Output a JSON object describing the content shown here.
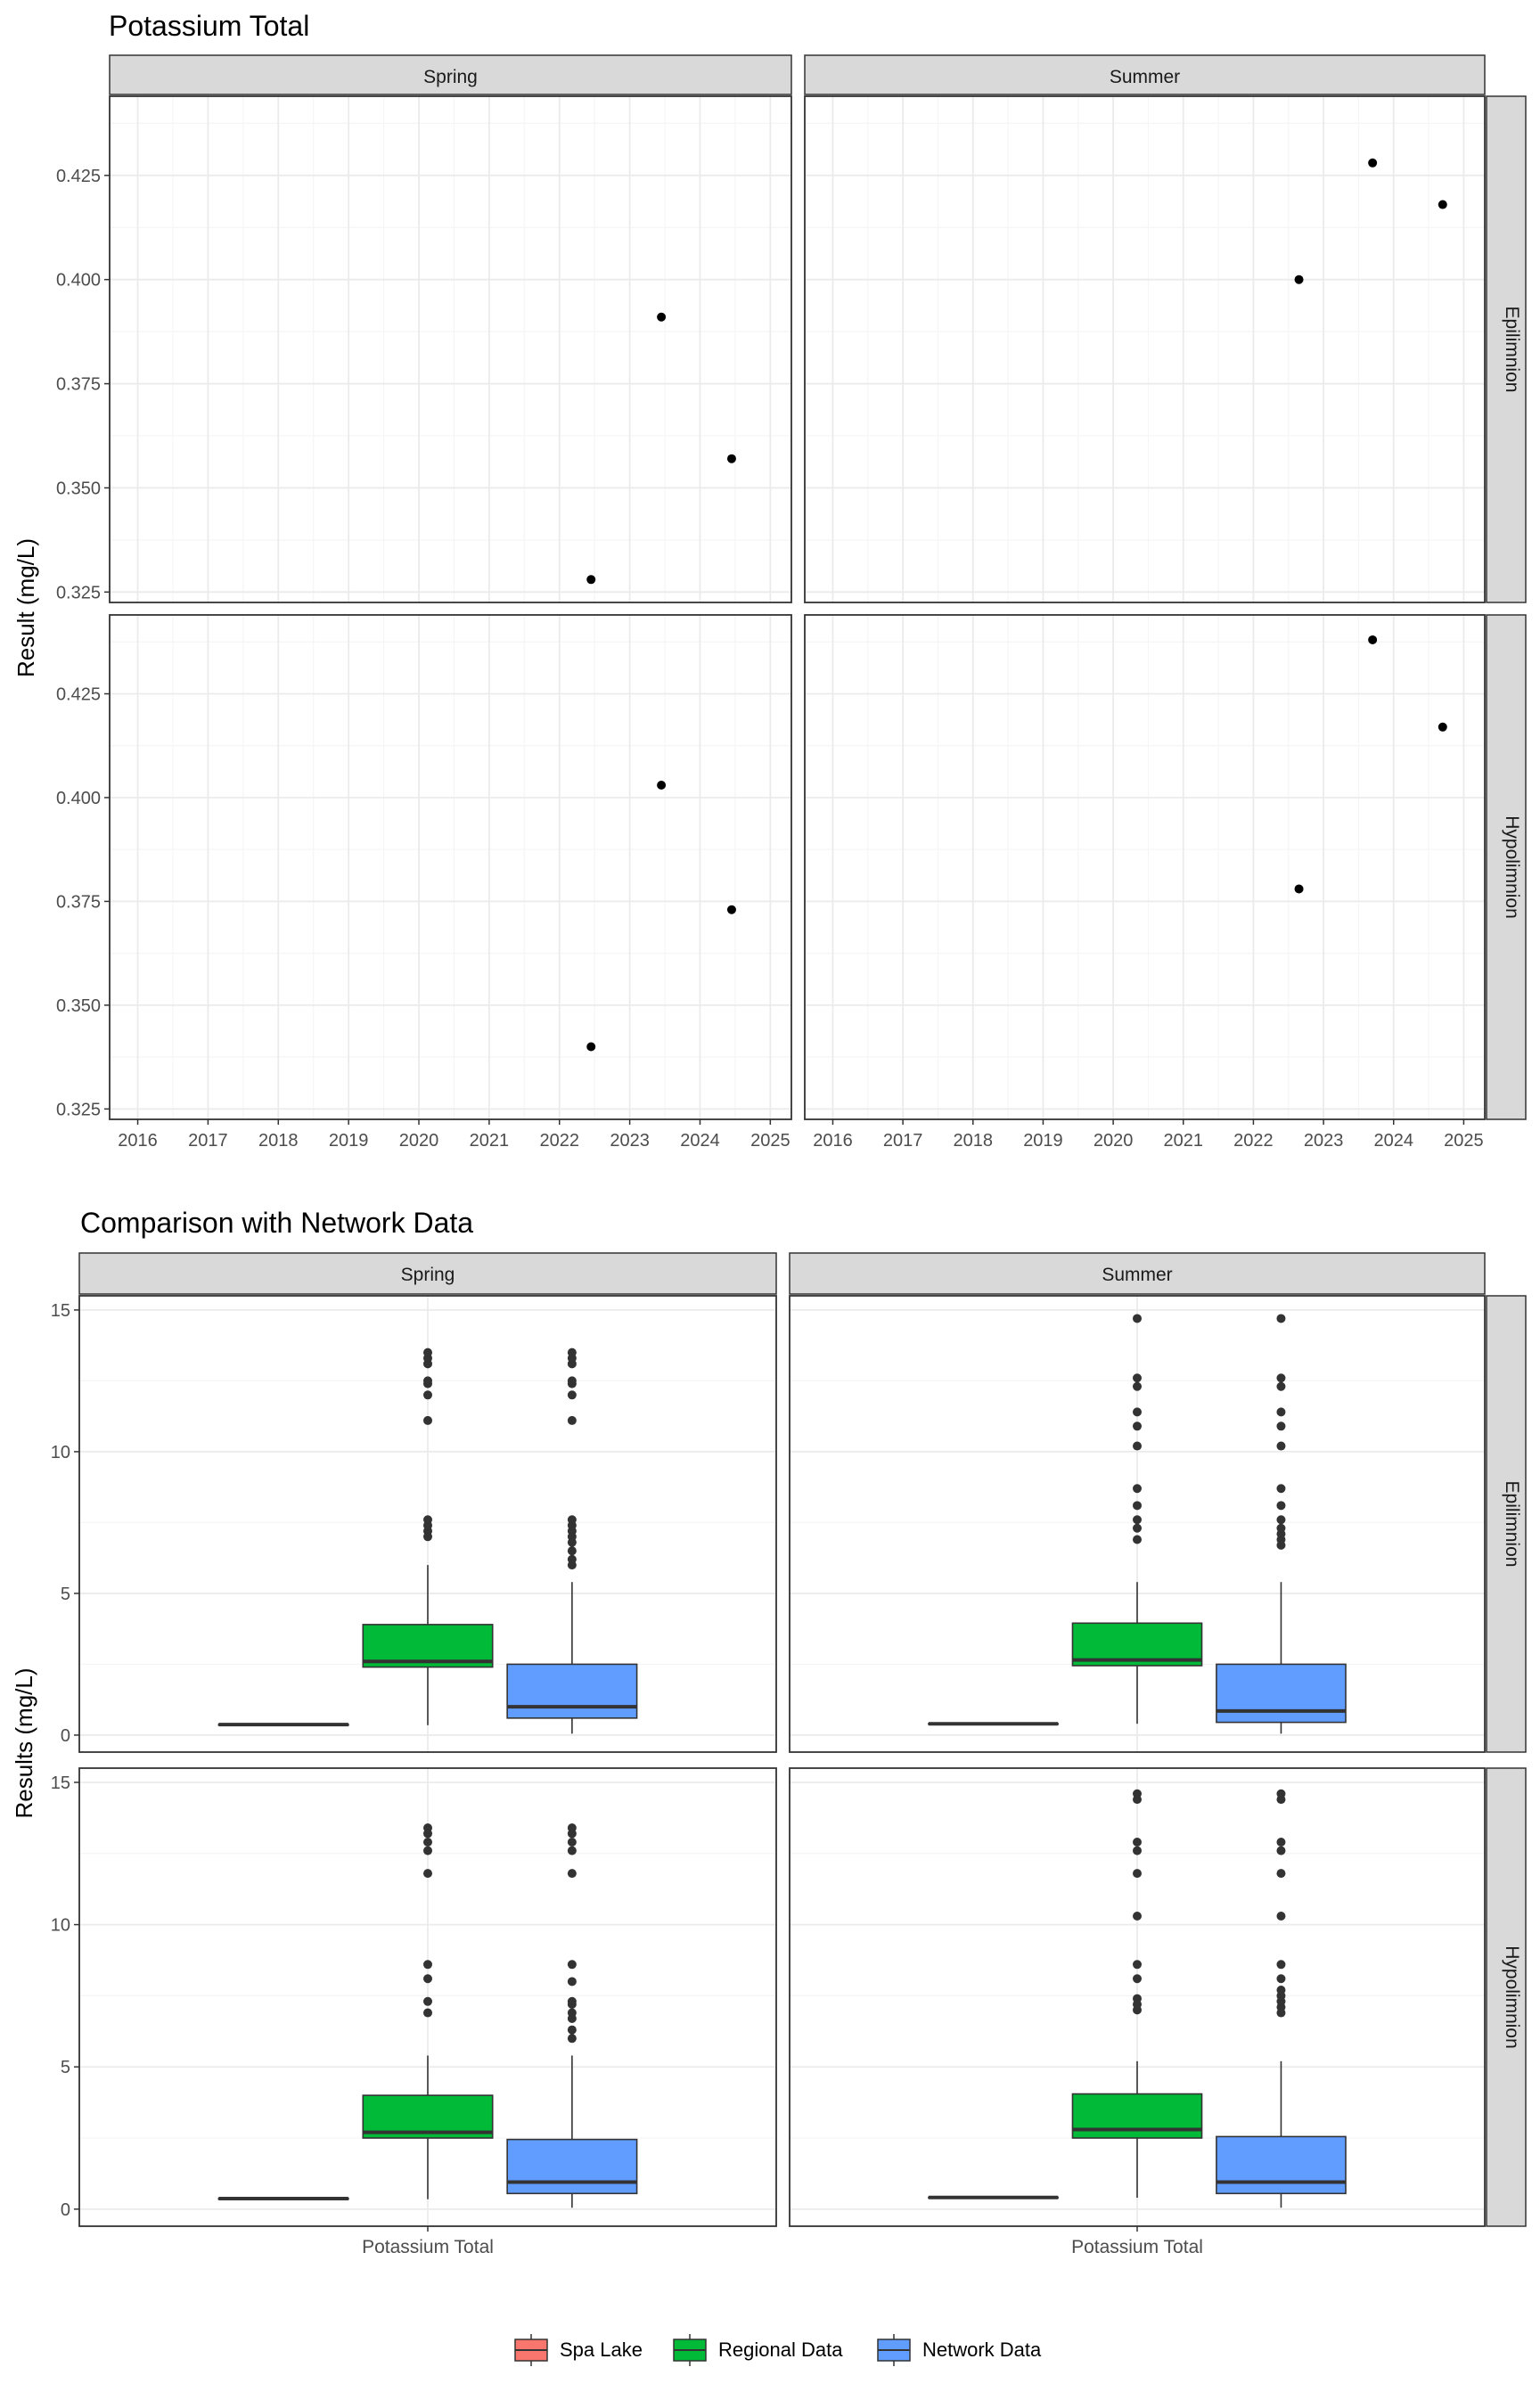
{
  "chart_data": [
    {
      "type": "scatter",
      "title": "Potassium Total",
      "ylabel": "Result (mg/L)",
      "xlabel": "",
      "xlim": [
        2015.6,
        2025.3
      ],
      "x_ticks": [
        "2016",
        "2017",
        "2018",
        "2019",
        "2020",
        "2021",
        "2022",
        "2023",
        "2024",
        "2025"
      ],
      "columns": [
        "Spring",
        "Summer"
      ],
      "rows": [
        "Epilimnion",
        "Hypolimnion"
      ],
      "grid": true,
      "panels": [
        {
          "col": "Spring",
          "row": "Epilimnion",
          "ylim": [
            0.3225,
            0.444
          ],
          "y_ticks": [
            "0.325",
            "0.350",
            "0.375",
            "0.400",
            "0.425"
          ],
          "points": [
            [
              2022.45,
              0.328
            ],
            [
              2023.45,
              0.391
            ],
            [
              2024.45,
              0.357
            ]
          ]
        },
        {
          "col": "Summer",
          "row": "Epilimnion",
          "ylim": [
            0.3225,
            0.444
          ],
          "y_ticks": [
            "0.325",
            "0.350",
            "0.375",
            "0.400",
            "0.425"
          ],
          "points": [
            [
              2022.65,
              0.4
            ],
            [
              2023.7,
              0.428
            ],
            [
              2024.7,
              0.418
            ]
          ]
        },
        {
          "col": "Spring",
          "row": "Hypolimnion",
          "ylim": [
            0.3225,
            0.444
          ],
          "y_ticks": [
            "0.325",
            "0.350",
            "0.375",
            "0.400",
            "0.425"
          ],
          "points": [
            [
              2022.45,
              0.34
            ],
            [
              2023.45,
              0.403
            ],
            [
              2024.45,
              0.373
            ]
          ]
        },
        {
          "col": "Summer",
          "row": "Hypolimnion",
          "ylim": [
            0.3225,
            0.444
          ],
          "y_ticks": [
            "0.325",
            "0.350",
            "0.375",
            "0.400",
            "0.425"
          ],
          "points": [
            [
              2022.65,
              0.378
            ],
            [
              2023.7,
              0.438
            ],
            [
              2024.7,
              0.417
            ]
          ]
        }
      ]
    },
    {
      "type": "box",
      "title": "Comparison with Network Data",
      "ylabel": "Results (mg/L)",
      "xlabel": "",
      "categories": [
        "Potassium Total"
      ],
      "ylim": [
        -0.6,
        15.5
      ],
      "y_ticks": [
        "0",
        "5",
        "10",
        "15"
      ],
      "y_tick_values": [
        0,
        5,
        10,
        15
      ],
      "columns": [
        "Spring",
        "Summer"
      ],
      "rows": [
        "Epilimnion",
        "Hypolimnion"
      ],
      "grid": true,
      "legend": {
        "position": "bottom",
        "items": [
          {
            "name": "Spa Lake",
            "color": "#F8766D"
          },
          {
            "name": "Regional Data",
            "color": "#00BA38"
          },
          {
            "name": "Network Data",
            "color": "#619CFF"
          }
        ]
      },
      "panels": [
        {
          "col": "Spring",
          "row": "Epilimnion",
          "boxes": [
            {
              "series": "Spa Lake",
              "q1": 0.36,
              "median": 0.37,
              "q3": 0.38,
              "whisker_low": 0.36,
              "whisker_high": 0.38,
              "outliers": []
            },
            {
              "series": "Regional Data",
              "q1": 2.4,
              "median": 2.6,
              "q3": 3.9,
              "whisker_low": 0.35,
              "whisker_high": 6.0,
              "outliers": [
                7.0,
                7.2,
                7.4,
                7.6,
                11.1,
                12.0,
                12.4,
                12.5,
                13.1,
                13.3,
                13.5
              ]
            },
            {
              "series": "Network Data",
              "q1": 0.6,
              "median": 1.0,
              "q3": 2.5,
              "whisker_low": 0.05,
              "whisker_high": 5.4,
              "outliers": [
                6.0,
                6.2,
                6.5,
                6.8,
                7.0,
                7.2,
                7.4,
                7.6,
                11.1,
                12.0,
                12.4,
                12.5,
                13.1,
                13.3,
                13.5
              ]
            }
          ]
        },
        {
          "col": "Summer",
          "row": "Epilimnion",
          "boxes": [
            {
              "series": "Spa Lake",
              "q1": 0.39,
              "median": 0.4,
              "q3": 0.41,
              "whisker_low": 0.39,
              "whisker_high": 0.41,
              "outliers": []
            },
            {
              "series": "Regional Data",
              "q1": 2.45,
              "median": 2.65,
              "q3": 3.95,
              "whisker_low": 0.4,
              "whisker_high": 5.4,
              "outliers": [
                6.9,
                7.3,
                7.6,
                8.1,
                8.7,
                10.2,
                10.9,
                11.4,
                12.3,
                12.6,
                14.7
              ]
            },
            {
              "series": "Network Data",
              "q1": 0.45,
              "median": 0.85,
              "q3": 2.5,
              "whisker_low": 0.05,
              "whisker_high": 5.4,
              "outliers": [
                6.7,
                6.9,
                7.1,
                7.3,
                7.6,
                8.1,
                8.7,
                10.2,
                10.9,
                11.4,
                12.3,
                12.6,
                14.7
              ]
            }
          ]
        },
        {
          "col": "Spring",
          "row": "Hypolimnion",
          "boxes": [
            {
              "series": "Spa Lake",
              "q1": 0.36,
              "median": 0.37,
              "q3": 0.38,
              "whisker_low": 0.36,
              "whisker_high": 0.38,
              "outliers": []
            },
            {
              "series": "Regional Data",
              "q1": 2.5,
              "median": 2.7,
              "q3": 4.0,
              "whisker_low": 0.35,
              "whisker_high": 5.4,
              "outliers": [
                6.9,
                7.3,
                8.1,
                8.6,
                11.8,
                12.6,
                12.9,
                13.2,
                13.4
              ]
            },
            {
              "series": "Network Data",
              "q1": 0.55,
              "median": 0.95,
              "q3": 2.45,
              "whisker_low": 0.05,
              "whisker_high": 5.4,
              "outliers": [
                6.0,
                6.3,
                6.7,
                6.9,
                7.2,
                7.3,
                8.0,
                8.6,
                11.8,
                12.6,
                12.9,
                13.2,
                13.4
              ]
            }
          ]
        },
        {
          "col": "Summer",
          "row": "Hypolimnion",
          "boxes": [
            {
              "series": "Spa Lake",
              "q1": 0.4,
              "median": 0.41,
              "q3": 0.42,
              "whisker_low": 0.4,
              "whisker_high": 0.42,
              "outliers": []
            },
            {
              "series": "Regional Data",
              "q1": 2.5,
              "median": 2.8,
              "q3": 4.05,
              "whisker_low": 0.4,
              "whisker_high": 5.2,
              "outliers": [
                7.0,
                7.2,
                7.4,
                8.1,
                8.6,
                10.3,
                11.8,
                12.6,
                12.9,
                14.4,
                14.6
              ]
            },
            {
              "series": "Network Data",
              "q1": 0.55,
              "median": 0.95,
              "q3": 2.55,
              "whisker_low": 0.05,
              "whisker_high": 5.2,
              "outliers": [
                6.9,
                7.1,
                7.3,
                7.5,
                7.7,
                8.1,
                8.6,
                10.3,
                11.8,
                12.6,
                12.9,
                14.4,
                14.6
              ]
            }
          ]
        }
      ]
    }
  ]
}
